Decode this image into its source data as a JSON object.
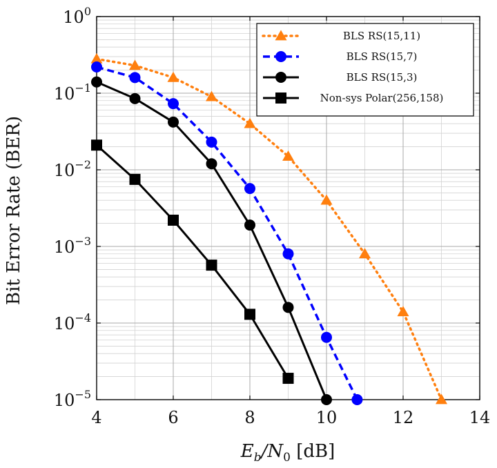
{
  "chart_data": {
    "type": "line",
    "title": "",
    "xlabel": "E_b/N_0 [dB]",
    "ylabel": "Bit Error Rate (BER)",
    "x_scale": "linear",
    "y_scale": "log",
    "xlim": [
      4,
      14
    ],
    "ylim": [
      1e-05,
      1
    ],
    "x_ticks": [
      4,
      6,
      8,
      10,
      12,
      14
    ],
    "y_tick_exponents": [
      0,
      -1,
      -2,
      -3,
      -4,
      -5
    ],
    "grid": true,
    "legend_position": "top-right",
    "series": [
      {
        "name": "BLS RS(15,11)",
        "color": "#ff7f0e",
        "line_style": "dotted",
        "marker": "triangle",
        "x": [
          4,
          5,
          6,
          7,
          8,
          9,
          10,
          11,
          12,
          13
        ],
        "y": [
          0.28,
          0.23,
          0.16,
          0.09,
          0.04,
          0.015,
          0.004,
          0.0008,
          0.00014,
          1e-05
        ]
      },
      {
        "name": "BLS RS(15,7)",
        "color": "#0000ff",
        "line_style": "dashed",
        "marker": "circle",
        "x": [
          4,
          5,
          6,
          7,
          8,
          9,
          10,
          10.8
        ],
        "y": [
          0.22,
          0.16,
          0.073,
          0.023,
          0.0057,
          0.0008,
          6.5e-05,
          1e-05
        ]
      },
      {
        "name": "BLS RS(15,3)",
        "color": "#000000",
        "line_style": "solid",
        "marker": "circle",
        "x": [
          4,
          5,
          6,
          7,
          8,
          9,
          10
        ],
        "y": [
          0.14,
          0.085,
          0.042,
          0.012,
          0.0019,
          0.00016,
          1e-05
        ]
      },
      {
        "name": "Non-sys Polar(256,158)",
        "color": "#000000",
        "line_style": "solid",
        "marker": "square",
        "x": [
          4,
          5,
          6,
          7,
          8,
          9
        ],
        "y": [
          0.021,
          0.0075,
          0.0022,
          0.00057,
          0.00013,
          1.9e-05
        ]
      }
    ]
  },
  "labels": {
    "xlabel_main": "E",
    "xlabel_sub1": "b",
    "xlabel_mid": "/N",
    "xlabel_sub2": "0",
    "xlabel_unit": " [dB]",
    "ylabel": "Bit Error Rate (BER)",
    "ytick_base": "10"
  }
}
